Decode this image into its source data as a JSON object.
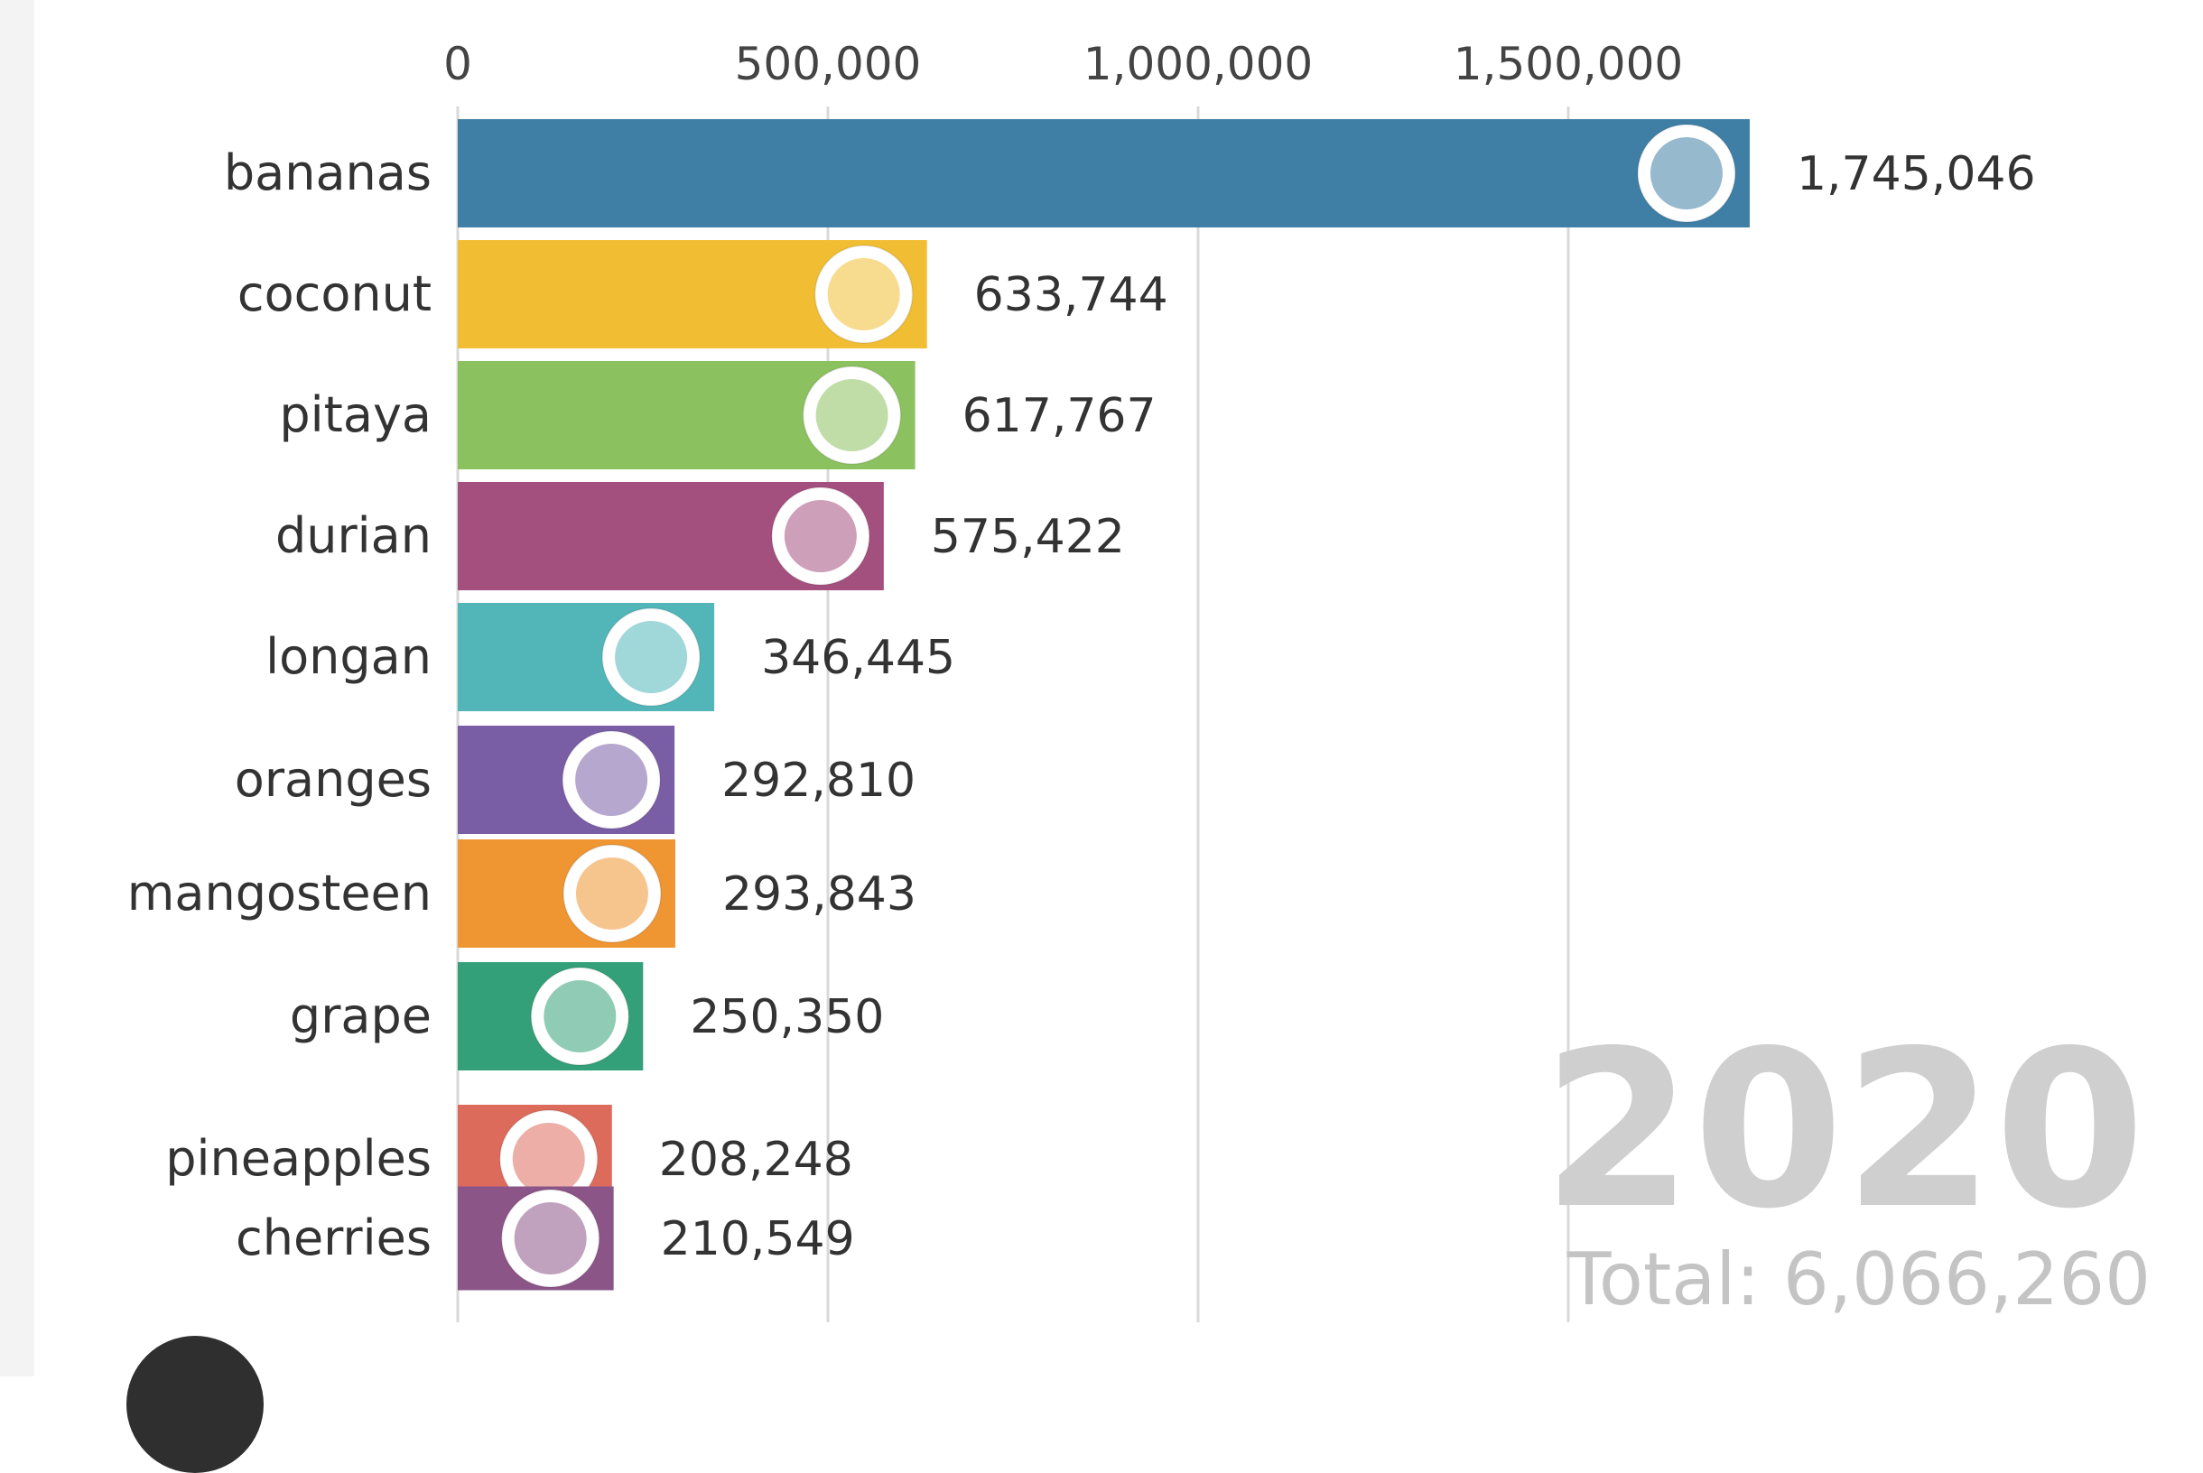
{
  "chart_data": {
    "type": "bar",
    "orientation": "horizontal",
    "title": "",
    "xlabel": "",
    "ylabel": "",
    "xlim": [
      0,
      1800000
    ],
    "x_ticks": [
      0,
      500000,
      1000000,
      1500000
    ],
    "x_tick_labels": [
      "0",
      "500,000",
      "1,000,000",
      "1,500,000"
    ],
    "grid": true,
    "categories": [
      "bananas",
      "coconut",
      "pitaya",
      "durian",
      "longan",
      "oranges",
      "mangosteen",
      "grape",
      "pineapples",
      "cherries"
    ],
    "values": [
      1745046,
      633744,
      617767,
      575422,
      346445,
      292810,
      293843,
      250350,
      208248,
      210549
    ],
    "value_labels": [
      "1,745,046",
      "633,744",
      "617,767",
      "575,422",
      "346,445",
      "292,810",
      "293,843",
      "250,350",
      "208,248",
      "210,549"
    ],
    "colors": [
      "#3f7fa6",
      "#f1bd32",
      "#8cc160",
      "#a4507e",
      "#52b6b8",
      "#7a5ea5",
      "#ef9532",
      "#34a079",
      "#dd6b5c",
      "#8c5588"
    ],
    "icons": [
      "banana-icon",
      "coconut-icon",
      "pitaya-icon",
      "durian-icon",
      "longan-icon",
      "orange-icon",
      "mangosteen-icon",
      "grape-icon",
      "pineapple-icon",
      "cherry-icon"
    ],
    "year": "2020",
    "total_label": "Total: 6,066,260"
  },
  "colors": {
    "background": "#ffffff",
    "label_text": "#333333",
    "axis_text": "#444444",
    "gridline": "#d9d9d9",
    "year_text": "#cfcfcf",
    "total_text": "#c4c4c4"
  }
}
